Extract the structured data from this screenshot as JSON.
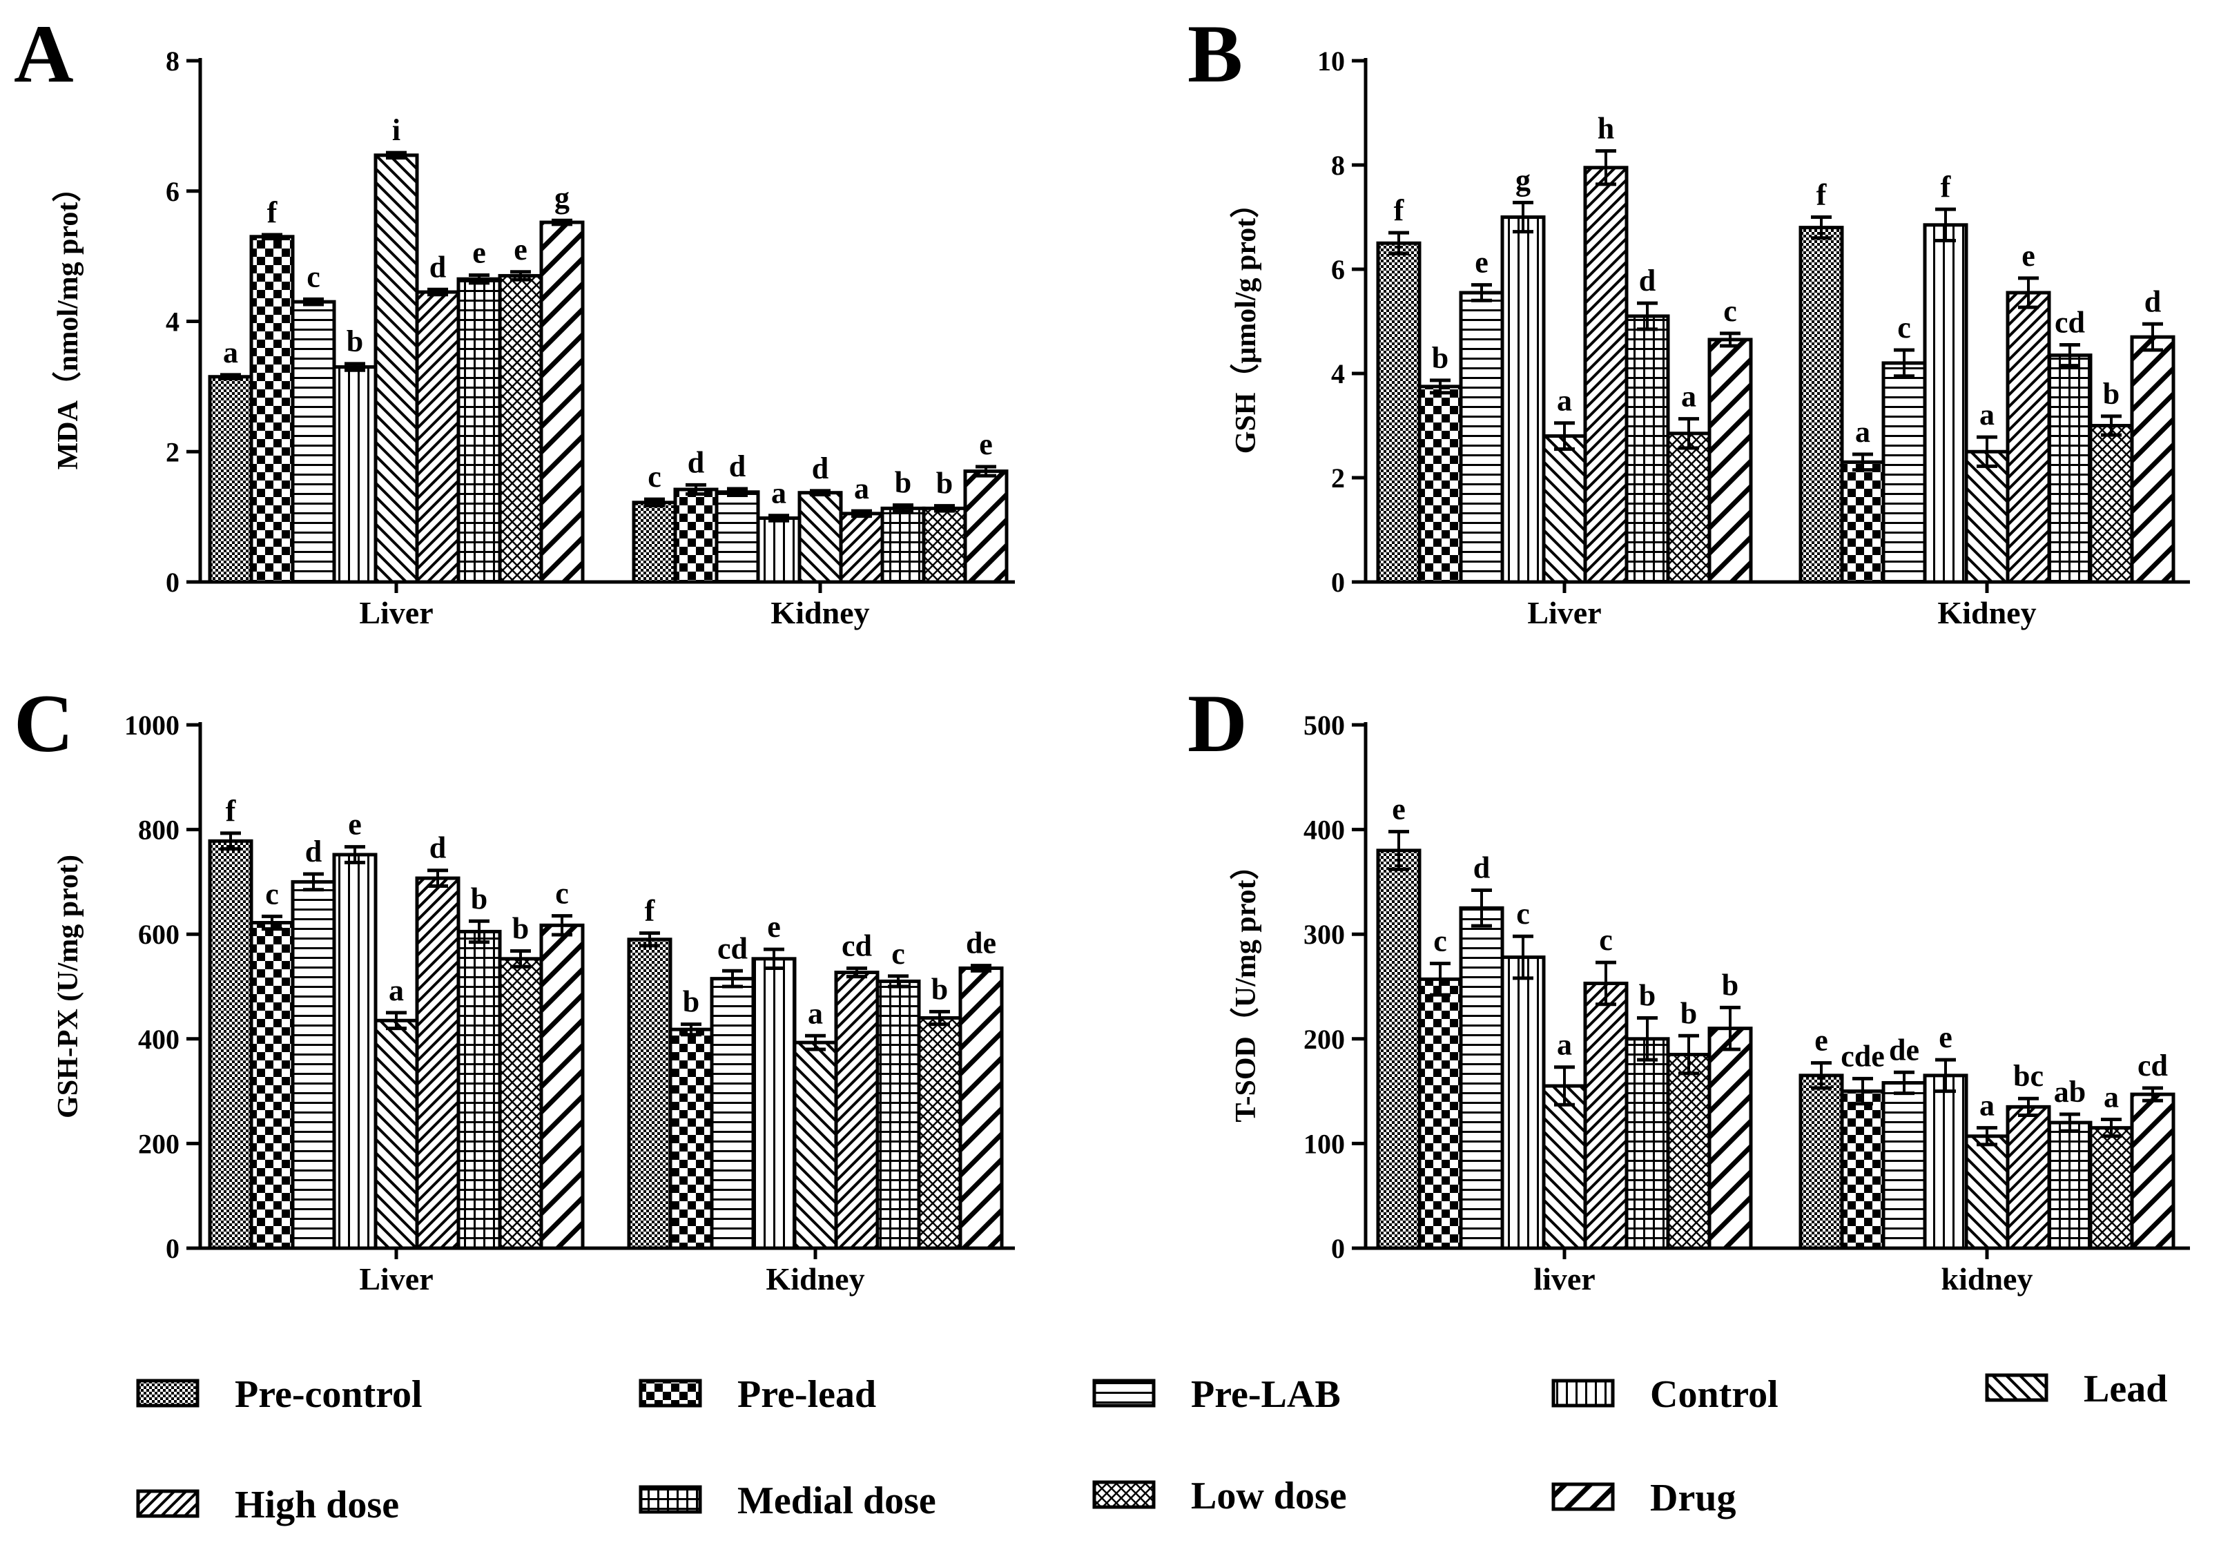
{
  "series_names": [
    "Pre-control",
    "Pre-lead",
    "Pre-LAB",
    "Control",
    "Lead",
    "High dose",
    "Medial dose",
    "Low dose",
    "Drug"
  ],
  "series_patterns": [
    "dots",
    "checker",
    "hlines",
    "vlines",
    "diag-right",
    "diag-left",
    "grid",
    "crosshatch",
    "diag-wide"
  ],
  "colors": {
    "ink": "#000000",
    "background": "#ffffff"
  },
  "chart_data": [
    {
      "type": "bar",
      "panel": "A",
      "ylabel": "MDA（nmol/mg prot）",
      "ylim": [
        0,
        8
      ],
      "yticks": [
        0,
        2,
        4,
        6,
        8
      ],
      "categories": [
        "Liver",
        "Kidney"
      ],
      "series": [
        {
          "name": "Pre-control",
          "values": [
            3.15,
            1.22
          ],
          "errors": [
            0.03,
            0.05
          ],
          "letters": [
            "a",
            "c"
          ]
        },
        {
          "name": "Pre-lead",
          "values": [
            5.3,
            1.42
          ],
          "errors": [
            0.03,
            0.07
          ],
          "letters": [
            "f",
            "d"
          ]
        },
        {
          "name": "Pre-LAB",
          "values": [
            4.3,
            1.38
          ],
          "errors": [
            0.04,
            0.05
          ],
          "letters": [
            "c",
            "d"
          ]
        },
        {
          "name": "Control",
          "values": [
            3.3,
            0.98
          ],
          "errors": [
            0.05,
            0.04
          ],
          "letters": [
            "b",
            "a"
          ]
        },
        {
          "name": "Lead",
          "values": [
            6.55,
            1.37
          ],
          "errors": [
            0.04,
            0.03
          ],
          "letters": [
            "i",
            "d"
          ]
        },
        {
          "name": "High dose",
          "values": [
            4.45,
            1.05
          ],
          "errors": [
            0.04,
            0.04
          ],
          "letters": [
            "d",
            "a"
          ]
        },
        {
          "name": "Medial dose",
          "values": [
            4.65,
            1.13
          ],
          "errors": [
            0.06,
            0.05
          ],
          "letters": [
            "e",
            "b"
          ]
        },
        {
          "name": "Low dose",
          "values": [
            4.7,
            1.13
          ],
          "errors": [
            0.06,
            0.04
          ],
          "letters": [
            "e",
            "b"
          ]
        },
        {
          "name": "Drug",
          "values": [
            5.52,
            1.7
          ],
          "errors": [
            0.03,
            0.07
          ],
          "letters": [
            "g",
            "e"
          ]
        }
      ]
    },
    {
      "type": "bar",
      "panel": "B",
      "ylabel": "GSH（μmol/g prot）",
      "ylim": [
        0,
        10
      ],
      "yticks": [
        0,
        2,
        4,
        6,
        8,
        10
      ],
      "categories": [
        "Liver",
        "Kidney"
      ],
      "series": [
        {
          "name": "Pre-control",
          "values": [
            6.5,
            6.8
          ],
          "errors": [
            0.2,
            0.2
          ],
          "letters": [
            "f",
            "f"
          ]
        },
        {
          "name": "Pre-lead",
          "values": [
            3.75,
            2.3
          ],
          "errors": [
            0.12,
            0.15
          ],
          "letters": [
            "b",
            "a"
          ]
        },
        {
          "name": "Pre-LAB",
          "values": [
            5.55,
            4.2
          ],
          "errors": [
            0.15,
            0.25
          ],
          "letters": [
            "e",
            "c"
          ]
        },
        {
          "name": "Control",
          "values": [
            7.0,
            6.85
          ],
          "errors": [
            0.28,
            0.3
          ],
          "letters": [
            "g",
            "f"
          ]
        },
        {
          "name": "Lead",
          "values": [
            2.8,
            2.5
          ],
          "errors": [
            0.25,
            0.28
          ],
          "letters": [
            "a",
            "a"
          ]
        },
        {
          "name": "High dose",
          "values": [
            7.95,
            5.55
          ],
          "errors": [
            0.32,
            0.28
          ],
          "letters": [
            "h",
            "e"
          ]
        },
        {
          "name": "Medial dose",
          "values": [
            5.1,
            4.35
          ],
          "errors": [
            0.25,
            0.2
          ],
          "letters": [
            "d",
            "cd"
          ]
        },
        {
          "name": "Low dose",
          "values": [
            2.85,
            3.0
          ],
          "errors": [
            0.28,
            0.18
          ],
          "letters": [
            "a",
            "b"
          ]
        },
        {
          "name": "Drug",
          "values": [
            4.65,
            4.7
          ],
          "errors": [
            0.12,
            0.25
          ],
          "letters": [
            "c",
            "d"
          ]
        }
      ]
    },
    {
      "type": "bar",
      "panel": "C",
      "ylabel": "GSH-PX (U/mg prot)",
      "ylim": [
        0,
        1000
      ],
      "yticks": [
        0,
        200,
        400,
        600,
        800,
        1000
      ],
      "categories": [
        "Liver",
        "Kidney"
      ],
      "series": [
        {
          "name": "Pre-control",
          "values": [
            778,
            590
          ],
          "errors": [
            15,
            12
          ],
          "letters": [
            "f",
            "f"
          ]
        },
        {
          "name": "Pre-lead",
          "values": [
            622,
            418
          ],
          "errors": [
            12,
            10
          ],
          "letters": [
            "c",
            "b"
          ]
        },
        {
          "name": "Pre-LAB",
          "values": [
            700,
            515
          ],
          "errors": [
            15,
            15
          ],
          "letters": [
            "d",
            "cd"
          ]
        },
        {
          "name": "Control",
          "values": [
            752,
            553
          ],
          "errors": [
            15,
            18
          ],
          "letters": [
            "e",
            "e"
          ]
        },
        {
          "name": "Lead",
          "values": [
            435,
            393
          ],
          "errors": [
            15,
            13
          ],
          "letters": [
            "a",
            "a"
          ]
        },
        {
          "name": "High dose",
          "values": [
            707,
            527
          ],
          "errors": [
            15,
            8
          ],
          "letters": [
            "d",
            "cd"
          ]
        },
        {
          "name": "Medial dose",
          "values": [
            605,
            510
          ],
          "errors": [
            20,
            10
          ],
          "letters": [
            "b",
            "c"
          ]
        },
        {
          "name": "Low dose",
          "values": [
            553,
            440
          ],
          "errors": [
            15,
            12
          ],
          "letters": [
            "b",
            "b"
          ]
        },
        {
          "name": "Drug",
          "values": [
            617,
            535
          ],
          "errors": [
            18,
            5
          ],
          "letters": [
            "c",
            "de"
          ]
        }
      ]
    },
    {
      "type": "bar",
      "panel": "D",
      "ylabel": "T-SOD（U/mg prot）",
      "ylim": [
        0,
        500
      ],
      "yticks": [
        0,
        100,
        200,
        300,
        400,
        500
      ],
      "categories": [
        "liver",
        "kidney"
      ],
      "series": [
        {
          "name": "Pre-control",
          "values": [
            380,
            165
          ],
          "errors": [
            18,
            12
          ],
          "letters": [
            "e",
            "e"
          ]
        },
        {
          "name": "Pre-lead",
          "values": [
            257,
            150
          ],
          "errors": [
            15,
            12
          ],
          "letters": [
            "c",
            "cde"
          ]
        },
        {
          "name": "Pre-LAB",
          "values": [
            325,
            158
          ],
          "errors": [
            17,
            10
          ],
          "letters": [
            "d",
            "de"
          ]
        },
        {
          "name": "Control",
          "values": [
            278,
            165
          ],
          "errors": [
            20,
            15
          ],
          "letters": [
            "c",
            "e"
          ]
        },
        {
          "name": "Lead",
          "values": [
            155,
            107
          ],
          "errors": [
            18,
            8
          ],
          "letters": [
            "a",
            "a"
          ]
        },
        {
          "name": "High dose",
          "values": [
            253,
            135
          ],
          "errors": [
            20,
            8
          ],
          "letters": [
            "c",
            "bc"
          ]
        },
        {
          "name": "Medial dose",
          "values": [
            200,
            120
          ],
          "errors": [
            20,
            8
          ],
          "letters": [
            "b",
            "ab"
          ]
        },
        {
          "name": "Low dose",
          "values": [
            185,
            115
          ],
          "errors": [
            18,
            8
          ],
          "letters": [
            "b",
            "a"
          ]
        },
        {
          "name": "Drug",
          "values": [
            210,
            147
          ],
          "errors": [
            20,
            6
          ],
          "letters": [
            "b",
            "cd"
          ]
        }
      ]
    }
  ]
}
